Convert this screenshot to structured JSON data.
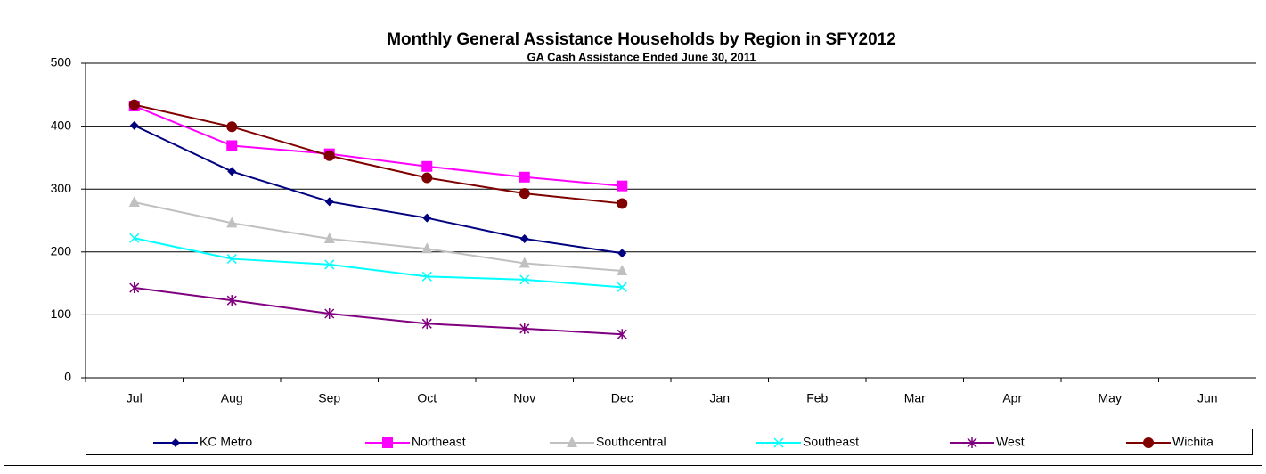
{
  "chart_data": {
    "type": "line",
    "title": "Monthly General Assistance Households by Region in SFY2012",
    "subtitle": "GA Cash Assistance Ended June 30, 2011",
    "categories": [
      "Jul",
      "Aug",
      "Sep",
      "Oct",
      "Nov",
      "Dec",
      "Jan",
      "Feb",
      "Mar",
      "Apr",
      "May",
      "Jun"
    ],
    "series": [
      {
        "name": "KC Metro",
        "color": "#000080",
        "marker": "diamond",
        "values": [
          401,
          328,
          280,
          254,
          221,
          198,
          null,
          null,
          null,
          null,
          null,
          null
        ]
      },
      {
        "name": "Northeast",
        "color": "#ff00ff",
        "marker": "square",
        "values": [
          432,
          369,
          356,
          336,
          319,
          305,
          null,
          null,
          null,
          null,
          null,
          null
        ]
      },
      {
        "name": "Southcentral",
        "color": "#c0c0c0",
        "marker": "triangle",
        "values": [
          279,
          246,
          221,
          205,
          182,
          170,
          null,
          null,
          null,
          null,
          null,
          null
        ]
      },
      {
        "name": "Southeast",
        "color": "#00ffff",
        "marker": "x",
        "values": [
          222,
          189,
          180,
          161,
          156,
          144,
          null,
          null,
          null,
          null,
          null,
          null
        ]
      },
      {
        "name": "West",
        "color": "#800080",
        "marker": "star",
        "values": [
          143,
          123,
          102,
          86,
          78,
          69,
          null,
          null,
          null,
          null,
          null,
          null
        ]
      },
      {
        "name": "Wichita",
        "color": "#800000",
        "marker": "circle",
        "values": [
          434,
          399,
          353,
          318,
          293,
          277,
          null,
          null,
          null,
          null,
          null,
          null
        ]
      }
    ],
    "ylim": [
      0,
      500
    ],
    "yticks": [
      0,
      100,
      200,
      300,
      400,
      500
    ],
    "grid": true,
    "legend": "bottom"
  }
}
